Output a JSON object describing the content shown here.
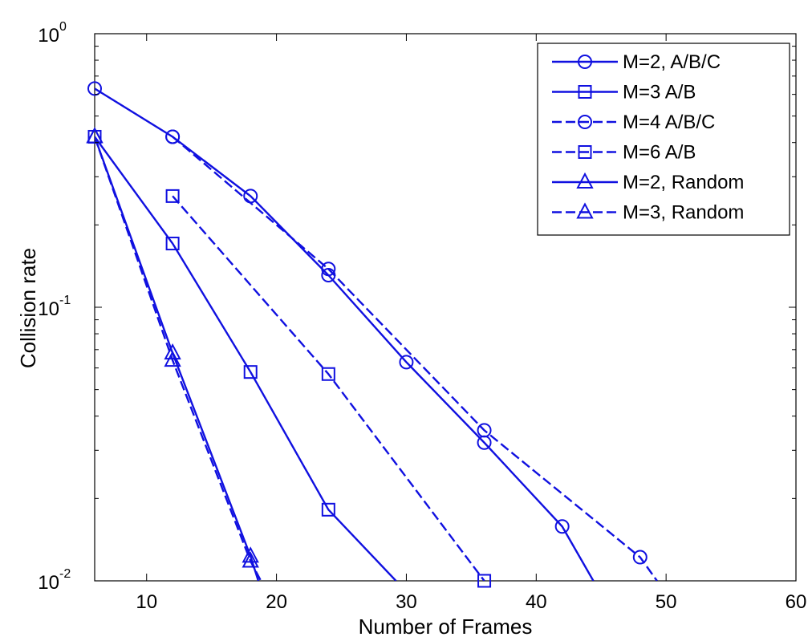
{
  "chart_data": {
    "type": "line",
    "title": "",
    "xlabel": "Number of Frames",
    "ylabel": "Collision rate",
    "xscale": "linear",
    "yscale": "log",
    "xlim": [
      6,
      60
    ],
    "ylim": [
      0.01,
      1
    ],
    "x_ticks": [
      10,
      20,
      30,
      40,
      50,
      60
    ],
    "x_tick_labels": [
      "10",
      "20",
      "30",
      "40",
      "50",
      "60"
    ],
    "y_ticks": [
      0.01,
      0.1,
      1
    ],
    "y_tick_labels": [
      {
        "base": "10",
        "exp": "-2"
      },
      {
        "base": "10",
        "exp": "-1"
      },
      {
        "base": "10",
        "exp": "0"
      }
    ],
    "grid": false,
    "legend_position": "top-right",
    "line_color": "#1010e0",
    "series": [
      {
        "name": "M=2, A/B/C",
        "marker": "circle",
        "line": "solid",
        "x": [
          6,
          12,
          18,
          24,
          30,
          36,
          42,
          44.4
        ],
        "y": [
          0.63,
          0.42,
          0.255,
          0.131,
          0.063,
          0.032,
          0.0158,
          0.01
        ]
      },
      {
        "name": "M=3 A/B",
        "marker": "square",
        "line": "solid",
        "x": [
          6,
          12,
          18,
          24,
          29.2
        ],
        "y": [
          0.42,
          0.171,
          0.058,
          0.0182,
          0.01
        ]
      },
      {
        "name": "M=4 A/B/C",
        "marker": "circle",
        "line": "dashed",
        "x": [
          12,
          24,
          36,
          48,
          49.3
        ],
        "y": [
          0.42,
          0.138,
          0.0355,
          0.0122,
          0.01
        ]
      },
      {
        "name": "M=6 A/B",
        "marker": "square",
        "line": "dashed",
        "x": [
          12,
          24,
          36
        ],
        "y": [
          0.255,
          0.057,
          0.01
        ]
      },
      {
        "name": "M=2, Random",
        "marker": "triangle",
        "line": "solid",
        "x": [
          6,
          12,
          18,
          18.6
        ],
        "y": [
          0.42,
          0.068,
          0.0123,
          0.01
        ]
      },
      {
        "name": "M=3, Random",
        "marker": "triangle",
        "line": "dashed",
        "x": [
          6,
          12,
          18,
          18.8
        ],
        "y": [
          0.42,
          0.064,
          0.0118,
          0.01
        ]
      }
    ]
  }
}
